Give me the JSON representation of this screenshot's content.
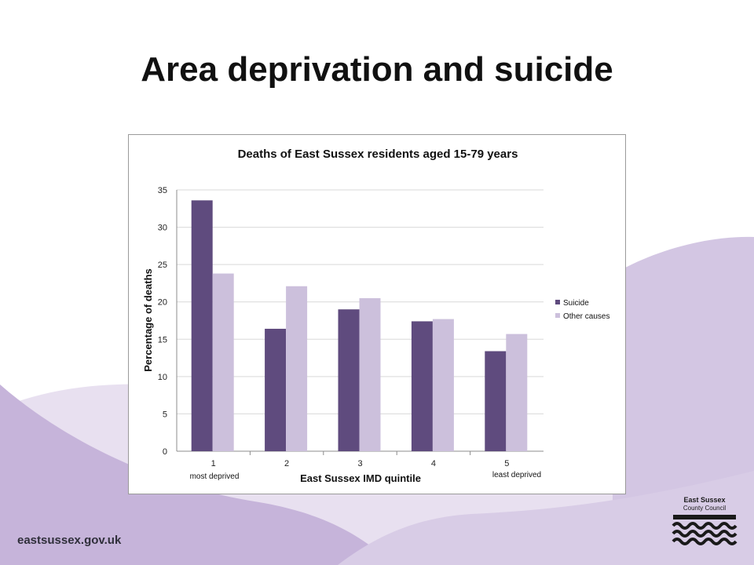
{
  "slide": {
    "title": "Area deprivation and suicide",
    "footer_url": "eastsussex.gov.uk"
  },
  "logo": {
    "line1": "East Sussex",
    "line2": "County Council",
    "icon": "waves-emblem-icon"
  },
  "colors": {
    "background_accent": "#c9b8da",
    "background_light": "#e6ddef",
    "suicide": "#5f4b7e",
    "other_causes": "#ccc0dc"
  },
  "chart_data": {
    "type": "bar",
    "title": "Deaths of East Sussex residents aged 15-79 years",
    "xlabel": "East Sussex IMD quintile",
    "ylabel": "Percentage of deaths",
    "categories": [
      "1",
      "2",
      "3",
      "4",
      "5"
    ],
    "category_notes": [
      "most deprived",
      "",
      "",
      "",
      "least deprived"
    ],
    "ylim": [
      0,
      35
    ],
    "yticks": [
      0,
      5,
      10,
      15,
      20,
      25,
      30,
      35
    ],
    "grid": true,
    "legend_position": "right",
    "series": [
      {
        "name": "Suicide",
        "values": [
          33.6,
          16.4,
          19.0,
          17.4,
          13.4
        ],
        "color": "#5f4b7e"
      },
      {
        "name": "Other causes",
        "values": [
          23.8,
          22.1,
          20.5,
          17.7,
          15.7
        ],
        "color": "#ccc0dc"
      }
    ]
  }
}
